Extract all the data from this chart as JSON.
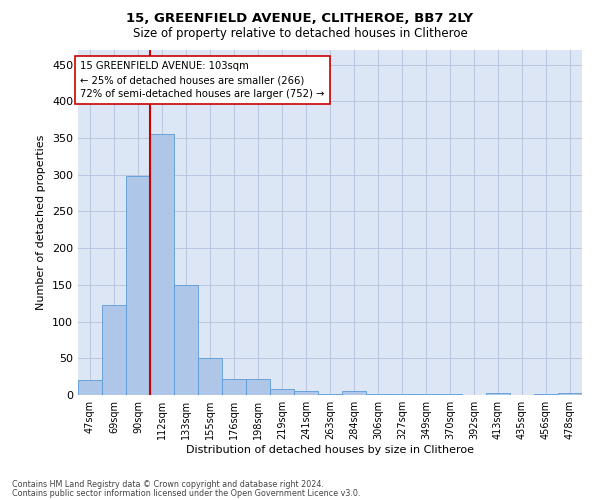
{
  "title1": "15, GREENFIELD AVENUE, CLITHEROE, BB7 2LY",
  "title2": "Size of property relative to detached houses in Clitheroe",
  "xlabel": "Distribution of detached houses by size in Clitheroe",
  "ylabel": "Number of detached properties",
  "bar_color": "#aec6e8",
  "bar_edge_color": "#5b9bd5",
  "background_color": "#ffffff",
  "ax_background_color": "#dce6f5",
  "grid_color": "#b8c8e0",
  "annotation_line_color": "#cc0000",
  "annotation_box_color": "#cc0000",
  "categories": [
    "47sqm",
    "69sqm",
    "90sqm",
    "112sqm",
    "133sqm",
    "155sqm",
    "176sqm",
    "198sqm",
    "219sqm",
    "241sqm",
    "263sqm",
    "284sqm",
    "306sqm",
    "327sqm",
    "349sqm",
    "370sqm",
    "392sqm",
    "413sqm",
    "435sqm",
    "456sqm",
    "478sqm"
  ],
  "values": [
    20,
    122,
    298,
    355,
    150,
    50,
    22,
    22,
    8,
    5,
    1,
    5,
    2,
    1,
    2,
    1,
    0,
    3,
    0,
    1,
    3
  ],
  "ylim": [
    0,
    470
  ],
  "yticks": [
    0,
    50,
    100,
    150,
    200,
    250,
    300,
    350,
    400,
    450
  ],
  "property_label": "15 GREENFIELD AVENUE: 103sqm",
  "pct_smaller_label": "← 25% of detached houses are smaller (266)",
  "pct_larger_label": "72% of semi-detached houses are larger (752) →",
  "vline_x_index": 2.5,
  "footnote1": "Contains HM Land Registry data © Crown copyright and database right 2024.",
  "footnote2": "Contains public sector information licensed under the Open Government Licence v3.0."
}
